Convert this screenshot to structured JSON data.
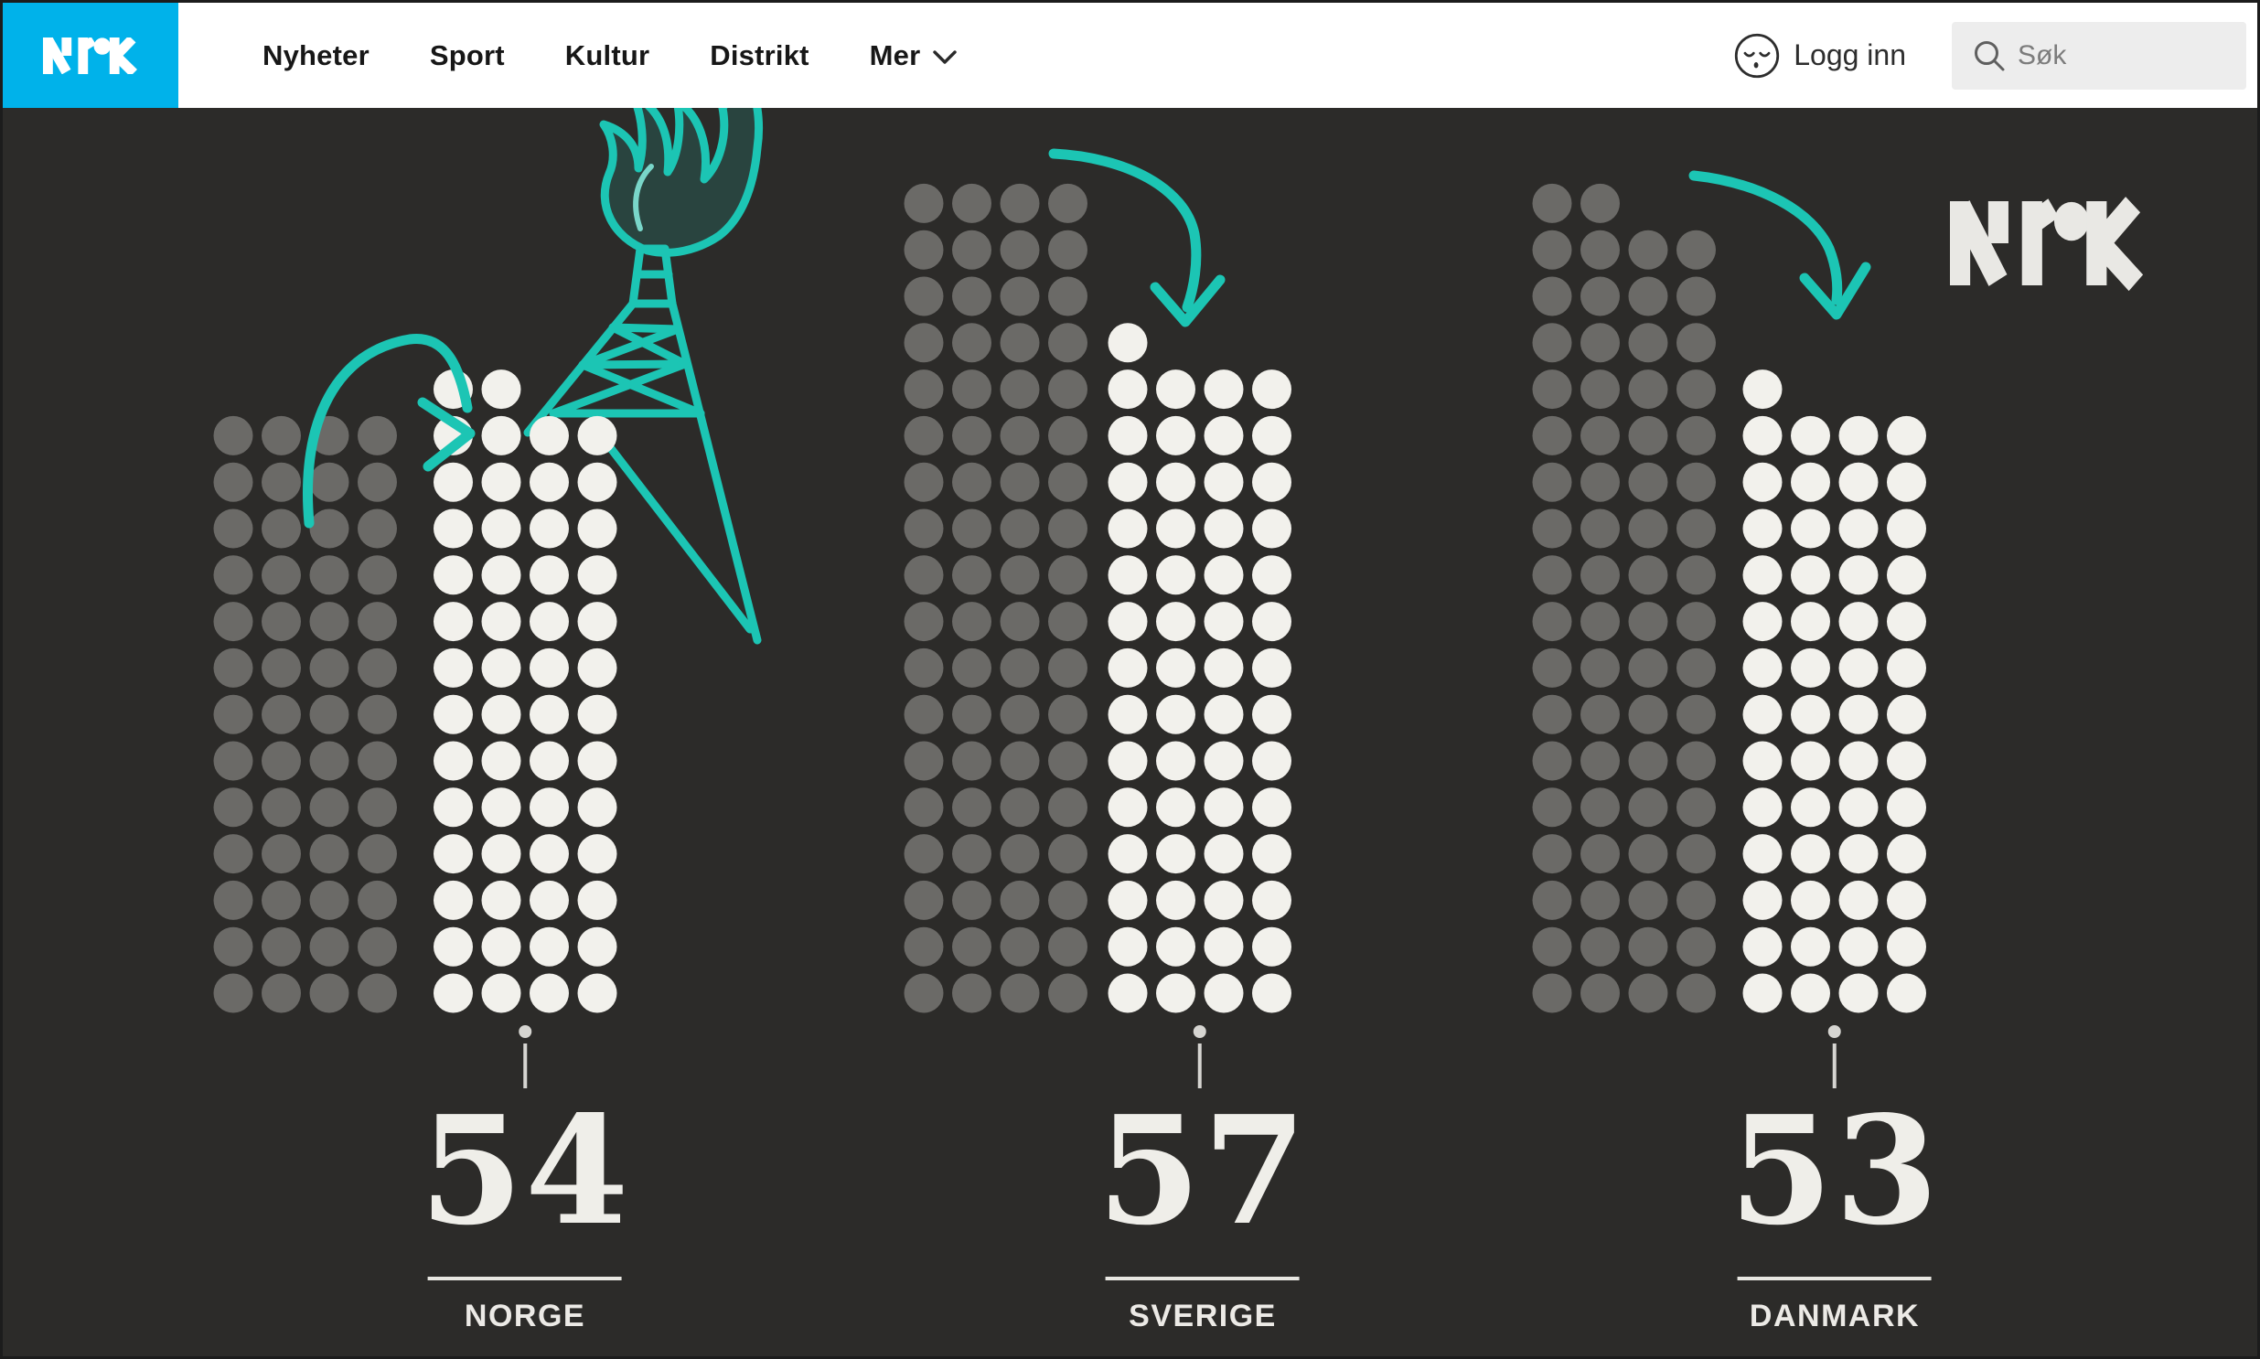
{
  "header": {
    "brand": "NRK",
    "nav_items": [
      {
        "label": "Nyheter"
      },
      {
        "label": "Sport"
      },
      {
        "label": "Kultur"
      },
      {
        "label": "Distrikt"
      },
      {
        "label": "Mer"
      }
    ],
    "login_label": "Logg inn",
    "search_placeholder": "Søk"
  },
  "infographic": {
    "watermark": "NRK",
    "countries": [
      {
        "label": "NORGE",
        "value": "54"
      },
      {
        "label": "SVERIGE",
        "value": "57"
      },
      {
        "label": "DANMARK",
        "value": "53"
      }
    ]
  },
  "chart_data": {
    "type": "pictogram",
    "title": "",
    "categories": [
      "NORGE",
      "SVERIGE",
      "DANMARK"
    ],
    "series": [
      {
        "name": "gray-dot-column",
        "values": [
          52,
          72,
          70
        ]
      },
      {
        "name": "white-dot-column",
        "values": [
          54,
          57,
          53
        ]
      }
    ],
    "data_labels": [
      "54",
      "57",
      "53"
    ],
    "dots_per_row": 4,
    "legend": "none",
    "annotations": [
      "teal curved arrow rising from gray to white column (Norway)",
      "teal curved arrow descending from gray to white column (Sweden)",
      "teal curved arrow descending from gray to white column (Denmark)",
      "teal hand-drawn oil derrick with flame above Norway's white column",
      "NRK watermark logo top right"
    ]
  },
  "colors": {
    "header_background": "#ffffff",
    "brand_blue": "#00b2ea",
    "stage_background": "#2c2b29",
    "dot_gray": "#6b6a67",
    "dot_white": "#f2f1ec",
    "accent_teal": "#1cc5b4",
    "pin_gray": "#d6d5d1",
    "text_light": "#efeee9"
  }
}
